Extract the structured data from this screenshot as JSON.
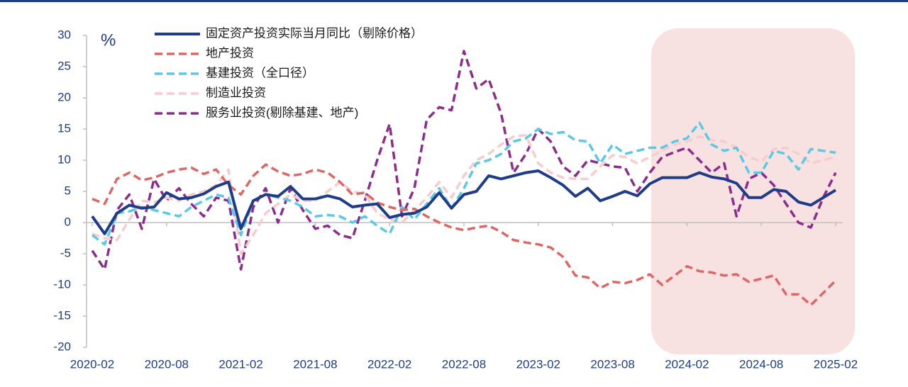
{
  "chart_data": {
    "type": "line",
    "y_label": "%",
    "categories": [
      "2020-02",
      null,
      null,
      null,
      null,
      null,
      "2020-08",
      null,
      null,
      null,
      null,
      null,
      "2021-02",
      null,
      null,
      null,
      null,
      null,
      "2021-08",
      null,
      null,
      null,
      null,
      null,
      "2022-02",
      null,
      null,
      null,
      null,
      null,
      "2022-08",
      null,
      null,
      null,
      null,
      null,
      "2023-02",
      null,
      null,
      null,
      null,
      null,
      "2023-08",
      null,
      null,
      null,
      null,
      null,
      "2024-02",
      null,
      null,
      null,
      null,
      null,
      "2024-08",
      null,
      null,
      null,
      null,
      null,
      "2025-02"
    ],
    "ylim": [
      -20,
      30
    ],
    "yticks": [
      -20,
      -15,
      -10,
      -5,
      0,
      5,
      10,
      15,
      20,
      25,
      30
    ],
    "grid": false,
    "legend": "upper left",
    "series": [
      {
        "name": "固定资产投资实际当月同比（剔除价格）",
        "color": "#1f3c88",
        "style": "solid",
        "values": [
          1.0,
          -1.8,
          1.5,
          2.8,
          2.3,
          2.5,
          4.8,
          3.8,
          4.0,
          4.6,
          5.8,
          6.5,
          -1.0,
          3.5,
          4.5,
          4.2,
          5.8,
          3.8,
          3.8,
          4.3,
          3.8,
          2.5,
          2.8,
          3.0,
          0.8,
          1.3,
          1.5,
          2.5,
          4.8,
          2.3,
          4.5,
          5.0,
          7.5,
          7.0,
          7.5,
          8.0,
          8.3,
          7.2,
          6.0,
          4.2,
          5.5,
          3.5,
          4.2,
          5.0,
          4.3,
          6.2,
          7.2,
          7.2,
          7.2,
          8.0,
          7.3,
          7.0,
          6.3,
          4.0,
          4.0,
          5.3,
          5.0,
          3.3,
          2.8,
          4.0,
          5.2
        ]
      },
      {
        "name": "地产投资",
        "color": "#e06666",
        "style": "dashed",
        "values": [
          3.8,
          3.0,
          7.0,
          8.0,
          6.8,
          7.2,
          8.0,
          8.5,
          8.8,
          7.8,
          8.5,
          6.0,
          4.5,
          7.5,
          9.3,
          8.2,
          7.5,
          7.8,
          8.5,
          8.0,
          6.5,
          4.5,
          4.8,
          3.2,
          2.5,
          2.0,
          2.2,
          1.0,
          0.0,
          -0.8,
          -1.2,
          -0.8,
          -0.5,
          -1.5,
          -2.8,
          -3.2,
          -3.5,
          -4.0,
          -5.5,
          -8.5,
          -8.8,
          -10.5,
          -9.5,
          -9.7,
          -9.2,
          -8.3,
          -10.0,
          -8.5,
          -7.0,
          -7.8,
          -8.0,
          -8.5,
          -8.3,
          -9.5,
          -9.0,
          -8.5,
          -11.5,
          -11.5,
          -13.2,
          -11.3,
          -9.3
        ]
      },
      {
        "name": "基建投资（全口径）",
        "color": "#5bc8e8",
        "style": "dashed",
        "values": [
          -2.0,
          -3.5,
          1.5,
          1.8,
          2.5,
          2.0,
          1.5,
          1.0,
          2.5,
          3.5,
          4.5,
          4.0,
          -2.0,
          3.5,
          4.5,
          4.0,
          3.5,
          2.5,
          1.0,
          1.2,
          1.0,
          0.0,
          1.0,
          -0.5,
          -1.8,
          2.5,
          0.5,
          3.0,
          5.5,
          2.3,
          5.5,
          9.5,
          10.0,
          11.0,
          13.0,
          13.5,
          15.0,
          14.2,
          14.5,
          13.2,
          13.0,
          9.5,
          12.5,
          11.0,
          11.5,
          12.0,
          12.0,
          13.0,
          13.5,
          16.0,
          12.5,
          11.5,
          12.0,
          8.0,
          8.0,
          11.5,
          11.0,
          8.5,
          11.8,
          11.5,
          11.2
        ]
      },
      {
        "name": "制造业投资",
        "color": "#f6cccc",
        "style": "dashed",
        "values": [
          -1.8,
          -2.5,
          -2.8,
          0.5,
          3.5,
          3.2,
          4.0,
          3.5,
          4.5,
          5.0,
          6.0,
          8.5,
          -5.0,
          -2.0,
          1.5,
          3.0,
          4.5,
          3.5,
          3.5,
          5.0,
          6.5,
          5.0,
          4.5,
          1.5,
          0.5,
          0.0,
          2.0,
          4.0,
          6.5,
          4.0,
          7.5,
          10.0,
          11.0,
          12.5,
          13.8,
          14.0,
          9.5,
          8.0,
          7.2,
          7.0,
          7.0,
          9.0,
          10.8,
          10.5,
          9.5,
          10.5,
          11.5,
          12.5,
          13.0,
          13.8,
          13.2,
          13.0,
          12.0,
          10.5,
          9.8,
          11.8,
          12.0,
          11.0,
          9.5,
          10.0,
          10.5
        ]
      },
      {
        "name": "服务业投资(剔除基建、地产)",
        "color": "#8e2c8e",
        "style": "dashed",
        "values": [
          -4.5,
          -7.5,
          2.0,
          4.5,
          -1.0,
          7.0,
          3.5,
          5.5,
          3.0,
          1.0,
          4.0,
          3.5,
          -7.5,
          2.5,
          5.5,
          0.0,
          5.5,
          2.0,
          -1.0,
          -0.5,
          -2.0,
          -2.5,
          3.5,
          10.0,
          15.8,
          1.0,
          5.5,
          16.5,
          18.5,
          18.0,
          27.5,
          21.5,
          23.0,
          17.5,
          8.0,
          11.0,
          15.0,
          13.0,
          9.0,
          7.5,
          10.0,
          9.5,
          9.0,
          8.8,
          5.0,
          8.0,
          10.5,
          11.3,
          12.0,
          10.0,
          8.0,
          9.5,
          1.0,
          7.0,
          8.0,
          6.0,
          3.0,
          0.0,
          -0.8,
          4.0,
          8.0
        ]
      }
    ]
  }
}
